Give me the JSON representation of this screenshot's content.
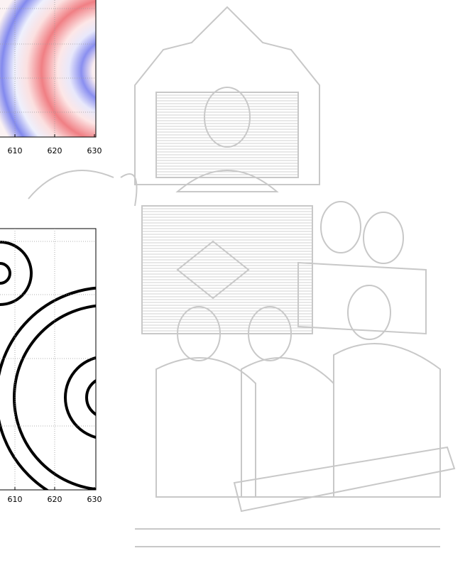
{
  "figures": [
    {
      "tick_labels": [
        610,
        620,
        630
      ]
    },
    {
      "tick_labels": [
        610,
        620,
        630
      ]
    }
  ]
}
